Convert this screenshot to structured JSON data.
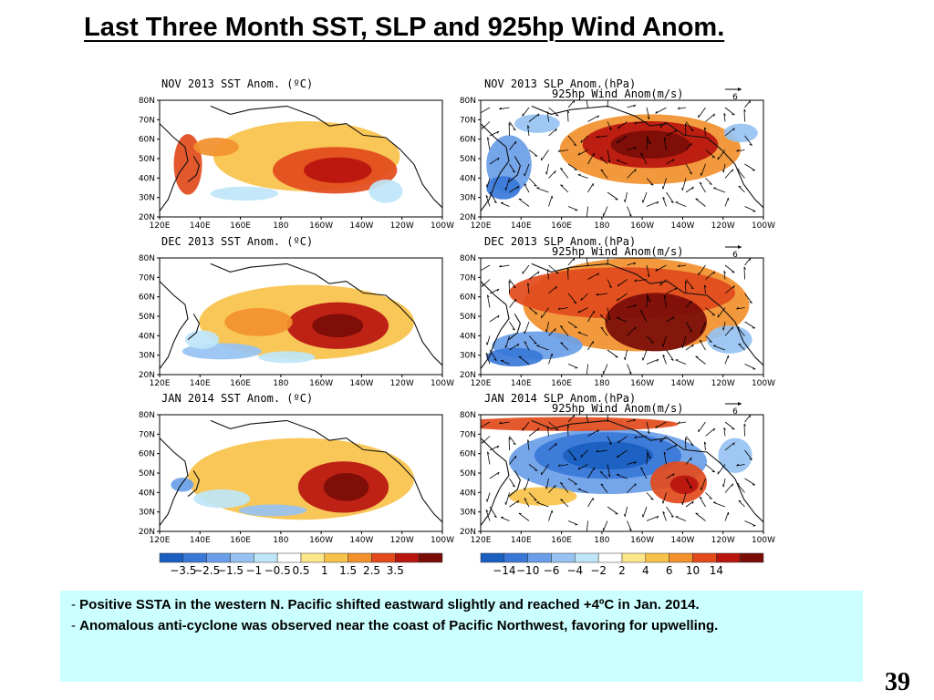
{
  "slide": {
    "title": "Last Three Month SST, SLP and 925hp Wind Anom.",
    "page_number": "39"
  },
  "panels": [
    {
      "id": "nov-sst",
      "title": "NOV 2013 SST Anom. (ºC)",
      "subtitle": "",
      "field": "sst",
      "month": "nov"
    },
    {
      "id": "nov-slp",
      "title": "NOV 2013 SLP Anom.(hPa)",
      "subtitle": "925hp Wind Anom(m/s)",
      "field": "slp",
      "month": "nov",
      "vector_ref": "6"
    },
    {
      "id": "dec-sst",
      "title": "DEC 2013 SST Anom. (ºC)",
      "subtitle": "",
      "field": "sst",
      "month": "dec"
    },
    {
      "id": "dec-slp",
      "title": "DEC 2013 SLP Anom.(hPa)",
      "subtitle": "925hp Wind Anom(m/s)",
      "field": "slp",
      "month": "dec",
      "vector_ref": "6"
    },
    {
      "id": "jan-sst",
      "title": "JAN 2014 SST Anom. (ºC)",
      "subtitle": "",
      "field": "sst",
      "month": "jan"
    },
    {
      "id": "jan-slp",
      "title": "JAN 2014 SLP Anom.(hPa)",
      "subtitle": "925hp Wind Anom(m/s)",
      "field": "slp",
      "month": "jan",
      "vector_ref": "6"
    }
  ],
  "axes": {
    "lat_labels": [
      "80N",
      "70N",
      "60N",
      "50N",
      "40N",
      "30N",
      "20N"
    ],
    "lon_labels": [
      "120E",
      "140E",
      "160E",
      "180",
      "160W",
      "140W",
      "120W",
      "100W"
    ]
  },
  "colorbars": {
    "sst": {
      "labels": [
        "−3.5",
        "−2.5",
        "−1.5",
        "−1",
        "−0.5",
        "0.5",
        "1",
        "1.5",
        "2.5",
        "3.5"
      ],
      "colors": [
        "#1a5fc0",
        "#3a78d8",
        "#6a9ee8",
        "#96c2f2",
        "#bfe6f8",
        "#ffffff",
        "#fde68a",
        "#f8c24a",
        "#f2902c",
        "#e24a1c",
        "#b8140e",
        "#7a0c08"
      ]
    },
    "slp": {
      "labels": [
        "−14",
        "−10",
        "−6",
        "−4",
        "−2",
        "2",
        "4",
        "6",
        "10",
        "14"
      ],
      "colors": [
        "#1a5fc0",
        "#3a78d8",
        "#6a9ee8",
        "#96c2f2",
        "#bfe6f8",
        "#ffffff",
        "#fde68a",
        "#f8c24a",
        "#f2902c",
        "#e24a1c",
        "#b8140e",
        "#7a0c08"
      ]
    }
  },
  "notes": [
    "Positive SSTA in the western N. Pacific shifted eastward slightly and reached +4ºC in Jan. 2014.",
    "Anomalous anti-cyclone was observed near the coast of Pacific Northwest, favoring for upwelling."
  ],
  "icons": {
    "wind_vector": "arrow-icon"
  }
}
